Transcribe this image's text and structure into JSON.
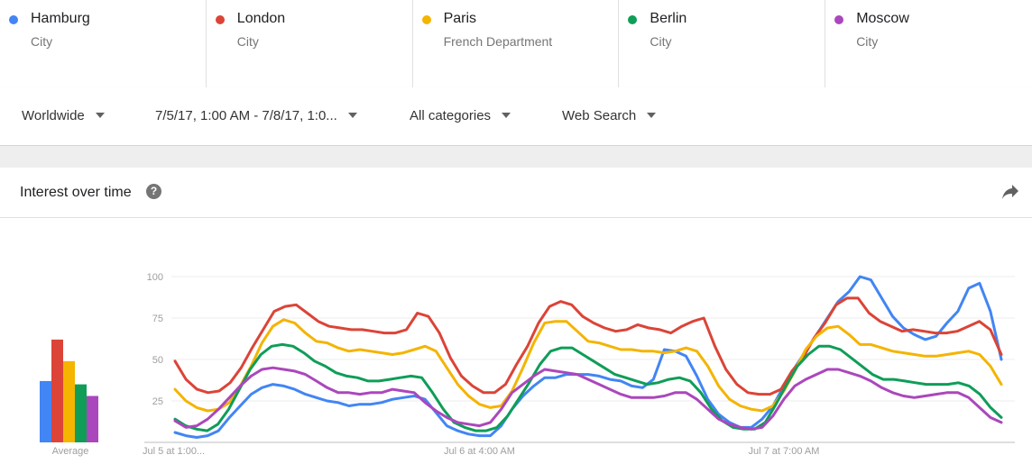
{
  "terms": [
    {
      "name": "Hamburg",
      "type": "City",
      "color": "#4285f4"
    },
    {
      "name": "London",
      "type": "City",
      "color": "#db4437"
    },
    {
      "name": "Paris",
      "type": "French Department",
      "color": "#f4b400"
    },
    {
      "name": "Berlin",
      "type": "City",
      "color": "#0f9d58"
    },
    {
      "name": "Moscow",
      "type": "City",
      "color": "#ab47bc"
    }
  ],
  "filters": {
    "region": "Worldwide",
    "date_range": "7/5/17, 1:00 AM - 7/8/17, 1:0...",
    "category": "All categories",
    "search_type": "Web Search"
  },
  "card": {
    "title": "Interest over time",
    "help_icon": "help-icon",
    "share_icon": "share-icon"
  },
  "chart_data": {
    "type": "line",
    "y_ticks": [
      25,
      50,
      75,
      100
    ],
    "ylim": [
      0,
      100
    ],
    "x_tick_labels": [
      "Jul 5 at 1:00...",
      "Jul 6 at 4:00 AM",
      "Jul 7 at 7:00 AM"
    ],
    "x_tick_index": [
      0,
      28,
      56
    ],
    "average_label": "Average",
    "averages": [
      {
        "name": "Hamburg",
        "value": 37
      },
      {
        "name": "London",
        "value": 62
      },
      {
        "name": "Paris",
        "value": 49
      },
      {
        "name": "Berlin",
        "value": 35
      },
      {
        "name": "Moscow",
        "value": 28
      }
    ],
    "series": [
      {
        "name": "Hamburg",
        "color": "#4285f4",
        "values": [
          6,
          4,
          3,
          4,
          7,
          15,
          22,
          29,
          33,
          35,
          34,
          32,
          29,
          27,
          25,
          24,
          22,
          23,
          23,
          24,
          26,
          27,
          28,
          26,
          18,
          10,
          7,
          5,
          4,
          4,
          10,
          20,
          28,
          34,
          39,
          39,
          41,
          41,
          41,
          40,
          38,
          37,
          34,
          33,
          38,
          56,
          55,
          52,
          40,
          26,
          17,
          12,
          9,
          9,
          14,
          22,
          34,
          45,
          55,
          65,
          75,
          85,
          91,
          100,
          98,
          87,
          76,
          69,
          65,
          62,
          64,
          72,
          79,
          93,
          96,
          79,
          50
        ]
      },
      {
        "name": "London",
        "color": "#db4437",
        "values": [
          49,
          38,
          32,
          30,
          31,
          36,
          45,
          57,
          68,
          79,
          82,
          83,
          78,
          73,
          70,
          69,
          68,
          68,
          67,
          66,
          66,
          68,
          78,
          76,
          66,
          51,
          40,
          34,
          30,
          30,
          35,
          47,
          58,
          72,
          82,
          85,
          83,
          76,
          72,
          69,
          67,
          68,
          71,
          69,
          68,
          66,
          70,
          73,
          75,
          58,
          44,
          35,
          30,
          29,
          29,
          32,
          43,
          51,
          63,
          72,
          83,
          87,
          87,
          78,
          73,
          70,
          67,
          68,
          67,
          66,
          66,
          67,
          70,
          73,
          68,
          53
        ]
      },
      {
        "name": "Paris",
        "color": "#f4b400",
        "values": [
          32,
          25,
          21,
          19,
          20,
          24,
          34,
          46,
          60,
          70,
          74,
          72,
          66,
          61,
          60,
          57,
          55,
          56,
          55,
          54,
          53,
          54,
          56,
          58,
          55,
          45,
          35,
          28,
          23,
          21,
          22,
          31,
          45,
          60,
          72,
          73,
          73,
          67,
          61,
          60,
          58,
          56,
          56,
          55,
          55,
          54,
          55,
          57,
          55,
          46,
          34,
          26,
          22,
          20,
          19,
          22,
          31,
          43,
          56,
          64,
          69,
          70,
          65,
          59,
          59,
          57,
          55,
          54,
          53,
          52,
          52,
          53,
          54,
          55,
          53,
          46,
          35
        ]
      },
      {
        "name": "Berlin",
        "color": "#0f9d58",
        "values": [
          14,
          10,
          8,
          7,
          11,
          20,
          32,
          44,
          53,
          58,
          59,
          58,
          54,
          49,
          46,
          42,
          40,
          39,
          37,
          37,
          38,
          39,
          40,
          39,
          30,
          20,
          12,
          9,
          7,
          7,
          9,
          16,
          26,
          36,
          47,
          55,
          57,
          57,
          53,
          49,
          45,
          41,
          39,
          37,
          35,
          36,
          38,
          39,
          37,
          30,
          20,
          13,
          9,
          8,
          8,
          12,
          23,
          35,
          46,
          53,
          58,
          58,
          56,
          51,
          46,
          41,
          38,
          38,
          37,
          36,
          35,
          35,
          35,
          36,
          34,
          29,
          21,
          15
        ]
      },
      {
        "name": "Moscow",
        "color": "#ab47bc",
        "values": [
          13,
          9,
          10,
          14,
          20,
          27,
          34,
          40,
          44,
          45,
          44,
          43,
          41,
          37,
          33,
          30,
          30,
          29,
          30,
          30,
          32,
          31,
          30,
          24,
          19,
          15,
          12,
          11,
          10,
          12,
          20,
          30,
          35,
          40,
          44,
          43,
          42,
          41,
          38,
          35,
          32,
          29,
          27,
          27,
          27,
          28,
          30,
          30,
          26,
          20,
          14,
          11,
          9,
          8,
          9,
          16,
          26,
          34,
          38,
          41,
          44,
          44,
          42,
          40,
          37,
          33,
          30,
          28,
          27,
          28,
          29,
          30,
          30,
          27,
          21,
          15,
          12
        ]
      }
    ]
  }
}
